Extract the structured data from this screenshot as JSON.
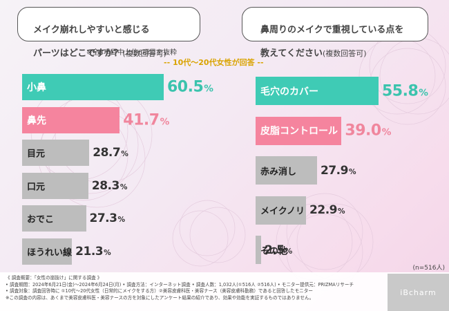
{
  "left_question": {
    "line1": "メイク崩れしやすいと感じる",
    "line2": "パーツはどこですか？",
    "suffix": "(複数回答可)"
  },
  "right_question": {
    "line1": "鼻周りのメイクで重視している点を",
    "line2": "教えてください",
    "suffix": "(複数回答可)"
  },
  "note_top_items": "※全8項目中上位6項目を抜粋",
  "target_label": "-- 10代〜20代女性が回答 --",
  "colors": {
    "teal": "#3fcbb5",
    "pink": "#f5849e",
    "gray": "#bdbdbd",
    "teal_text": "#3bc3ad",
    "pink_text": "#f0869d"
  },
  "chart_data": [
    {
      "type": "bar",
      "orientation": "horizontal",
      "categories": [
        "小鼻",
        "鼻先",
        "目元",
        "口元",
        "おでこ",
        "ほうれい線"
      ],
      "values": [
        60.5,
        41.7,
        28.7,
        28.3,
        27.3,
        21.3
      ],
      "value_labels": [
        {
          "num": "60.5",
          "pct": "%"
        },
        {
          "num": "41.7",
          "pct": "%"
        },
        {
          "num": "28.7",
          "pct": "%"
        },
        {
          "num": "28.3",
          "pct": "%"
        },
        {
          "num": "27.3",
          "pct": "%"
        },
        {
          "num": "21.3",
          "pct": "%"
        }
      ],
      "xlim": [
        0,
        100
      ]
    },
    {
      "type": "bar",
      "orientation": "horizontal",
      "categories": [
        "毛穴のカバー",
        "皮脂コントロール",
        "赤み消し",
        "メイクノリ",
        "その他"
      ],
      "values": [
        55.8,
        39.0,
        27.9,
        22.9,
        2.5
      ],
      "value_labels": [
        {
          "num": "55.8",
          "pct": "%"
        },
        {
          "num": "39.0",
          "pct": "%"
        },
        {
          "num": "27.9",
          "pct": "%"
        },
        {
          "num": "22.9",
          "pct": "%"
        },
        {
          "num": "2.5",
          "pct": "%"
        }
      ],
      "xlim": [
        0,
        100
      ]
    }
  ],
  "sample_size": "(n=516人)",
  "footer": {
    "line1": "《 調査概要：「女性の崩抜け」に関する調査 》",
    "line2": "• 調査期間：2024年6月21日(金)〜2024年6月24日(月) • 調査方法：インターネット調査 • 調査人数：1,032人(①516人 ②516人) • モニター提供元：PRIZMAリサーチ",
    "line3": "• 調査対象：調査回答時に ①10代〜20代女性（日常的にメイクをする方）②美容皮膚科医・美容ナース（美容皮膚科勤務）であると回答したモニター",
    "line4": "※この調査の内容は、あくまで美容皮膚科医・美容ナースの方を対象にしたアンケート結果の紹介であり、効果や効能を実証するものではありません。"
  },
  "logo_text": "iBcharm"
}
